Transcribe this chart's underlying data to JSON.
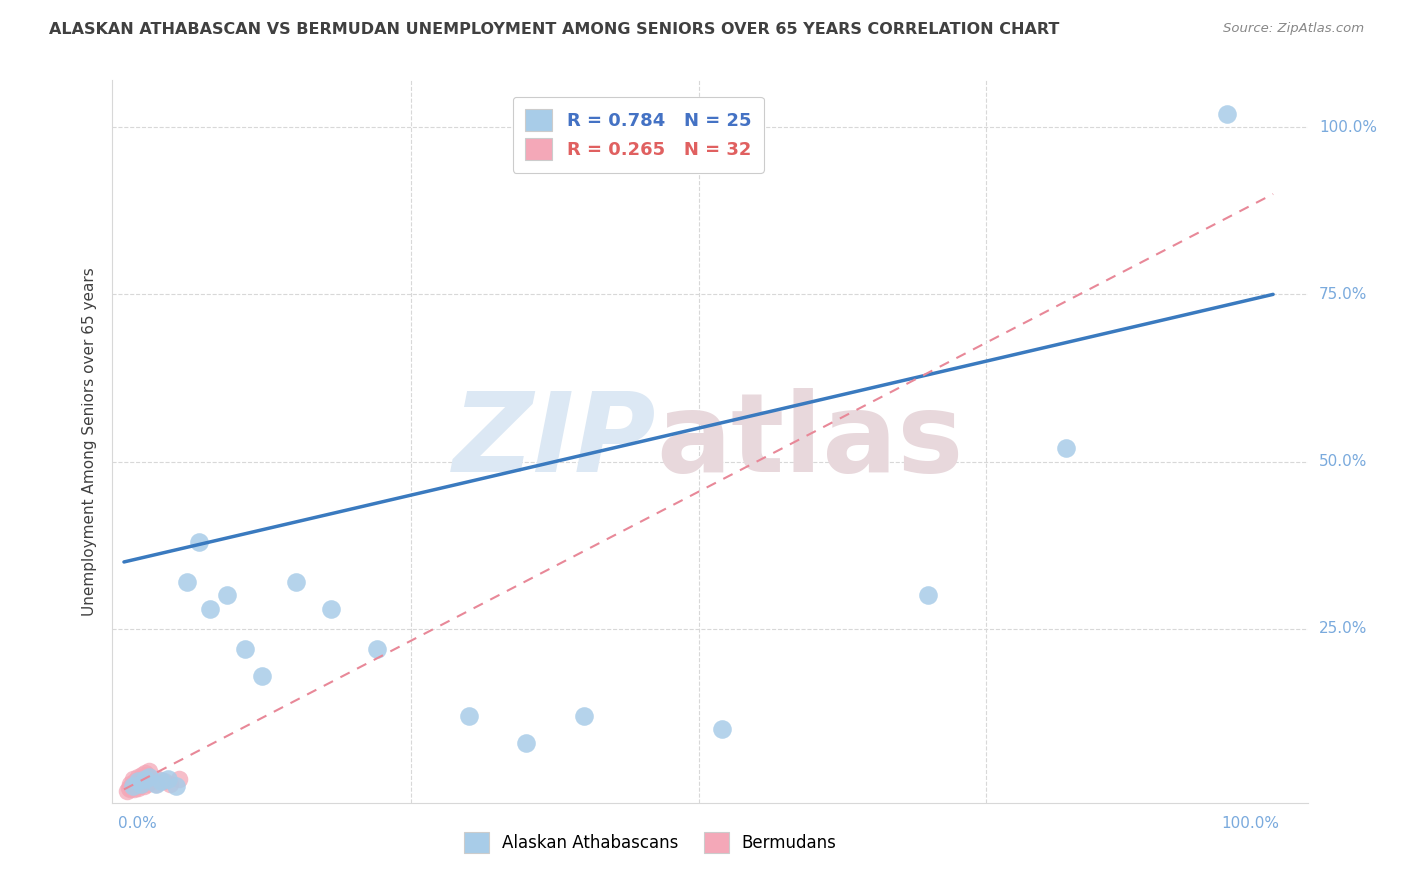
{
  "title": "ALASKAN ATHABASCAN VS BERMUDAN UNEMPLOYMENT AMONG SENIORS OVER 65 YEARS CORRELATION CHART",
  "source": "Source: ZipAtlas.com",
  "ylabel": "Unemployment Among Seniors over 65 years",
  "legend1_label": "R = 0.784   N = 25",
  "legend2_label": "R = 0.265   N = 32",
  "bottom_legend1": "Alaskan Athabascans",
  "bottom_legend2": "Bermudans",
  "blue_scatter_color": "#a8cce8",
  "pink_scatter_color": "#f4a8b8",
  "blue_line_color": "#3a7abf",
  "pink_line_color": "#e88898",
  "blue_text_color": "#4472C4",
  "pink_text_color": "#E06060",
  "axis_color": "#7aaadd",
  "grid_color": "#d8d8d8",
  "title_color": "#404040",
  "source_color": "#888888",
  "watermark_zip_color": "#dce8f4",
  "watermark_atlas_color": "#e8d8dc",
  "blue_x": [
    0.008,
    0.012,
    0.015,
    0.018,
    0.022,
    0.028,
    0.032,
    0.038,
    0.045,
    0.055,
    0.065,
    0.075,
    0.09,
    0.105,
    0.12,
    0.15,
    0.18,
    0.22,
    0.3,
    0.35,
    0.4,
    0.52,
    0.7,
    0.82,
    0.96
  ],
  "blue_y": [
    0.015,
    0.022,
    0.018,
    0.025,
    0.028,
    0.018,
    0.022,
    0.025,
    0.015,
    0.32,
    0.38,
    0.28,
    0.3,
    0.22,
    0.18,
    0.32,
    0.28,
    0.22,
    0.12,
    0.08,
    0.12,
    0.1,
    0.3,
    0.52,
    1.02
  ],
  "pink_x": [
    0.003,
    0.004,
    0.005,
    0.005,
    0.006,
    0.007,
    0.008,
    0.008,
    0.009,
    0.01,
    0.01,
    0.011,
    0.012,
    0.012,
    0.013,
    0.014,
    0.015,
    0.016,
    0.016,
    0.017,
    0.018,
    0.018,
    0.02,
    0.02,
    0.021,
    0.022,
    0.025,
    0.028,
    0.03,
    0.035,
    0.04,
    0.048
  ],
  "pink_y": [
    0.008,
    0.012,
    0.01,
    0.018,
    0.015,
    0.012,
    0.018,
    0.025,
    0.01,
    0.015,
    0.022,
    0.018,
    0.012,
    0.028,
    0.015,
    0.02,
    0.025,
    0.018,
    0.032,
    0.015,
    0.025,
    0.035,
    0.018,
    0.032,
    0.025,
    0.038,
    0.022,
    0.018,
    0.025,
    0.022,
    0.018,
    0.025
  ],
  "blue_line_x0": 0.0,
  "blue_line_y0": 0.35,
  "blue_line_x1": 1.0,
  "blue_line_y1": 0.75,
  "pink_line_x0": 0.0,
  "pink_line_y0": 0.01,
  "pink_line_x1": 1.0,
  "pink_line_y1": 0.9,
  "xlim": [
    0.0,
    1.0
  ],
  "ylim": [
    0.0,
    1.0
  ],
  "xtick_positions": [
    0.0,
    0.25,
    0.5,
    0.75,
    1.0
  ],
  "ytick_positions": [
    0.0,
    0.25,
    0.5,
    0.75,
    1.0
  ],
  "right_tick_labels": [
    "",
    "25.0%",
    "50.0%",
    "75.0%",
    "100.0%"
  ]
}
